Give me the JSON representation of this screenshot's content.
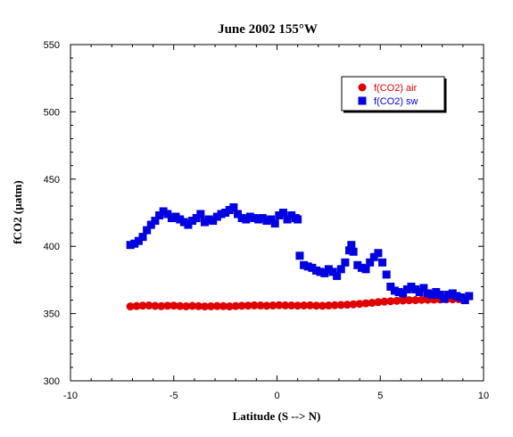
{
  "chart_data": {
    "type": "scatter",
    "title": "June 2002 155°W",
    "xlabel": "Latitude (S --> N)",
    "ylabel": "fCO2 (µatm)",
    "xlim": [
      -10,
      10
    ],
    "ylim": [
      300,
      550
    ],
    "xticks": [
      -10,
      -5,
      0,
      5,
      10
    ],
    "yticks": [
      300,
      350,
      400,
      450,
      500,
      550
    ],
    "xtick_labels": [
      "-10",
      "-5",
      "0",
      "5",
      "10"
    ],
    "ytick_labels": [
      "300",
      "350",
      "400",
      "450",
      "500",
      "550"
    ],
    "grid": false,
    "legend_position": "top-right",
    "series": [
      {
        "name": "f(CO2) air",
        "marker": "circle",
        "color": "#e00000",
        "x": [
          -7.1,
          -6.8,
          -6.5,
          -6.2,
          -5.9,
          -5.6,
          -5.3,
          -5.0,
          -4.7,
          -4.4,
          -4.1,
          -3.8,
          -3.5,
          -3.2,
          -2.9,
          -2.6,
          -2.3,
          -2.0,
          -1.7,
          -1.4,
          -1.1,
          -0.8,
          -0.5,
          -0.2,
          0.1,
          0.4,
          0.7,
          1.0,
          1.3,
          1.6,
          1.9,
          2.2,
          2.5,
          2.8,
          3.1,
          3.4,
          3.7,
          4.0,
          4.3,
          4.6,
          4.9,
          5.2,
          5.5,
          5.8,
          6.1,
          6.4,
          6.7,
          7.0,
          7.3,
          7.6,
          7.9,
          8.2,
          8.5,
          8.8,
          9.1
        ],
        "y": [
          355.3,
          355.6,
          355.9,
          356.0,
          355.7,
          355.5,
          355.8,
          355.9,
          355.6,
          355.4,
          355.7,
          355.5,
          355.3,
          355.4,
          355.6,
          355.5,
          355.3,
          355.6,
          355.8,
          355.9,
          356.1,
          356.0,
          355.8,
          356.0,
          356.2,
          356.1,
          356.0,
          355.9,
          356.0,
          356.1,
          355.9,
          355.8,
          356.0,
          356.2,
          356.4,
          356.6,
          356.9,
          357.2,
          357.6,
          358.0,
          358.5,
          358.9,
          359.2,
          359.5,
          359.7,
          359.9,
          360.0,
          360.2,
          360.3,
          360.4,
          360.5,
          360.6,
          360.6,
          360.7,
          360.8
        ]
      },
      {
        "name": "f(CO2) sw",
        "marker": "square",
        "color": "#0000e0",
        "x": [
          -7.1,
          -6.9,
          -6.7,
          -6.5,
          -6.3,
          -6.1,
          -5.9,
          -5.7,
          -5.5,
          -5.3,
          -5.1,
          -4.9,
          -4.7,
          -4.5,
          -4.3,
          -4.1,
          -3.9,
          -3.7,
          -3.5,
          -3.3,
          -3.1,
          -2.9,
          -2.7,
          -2.5,
          -2.3,
          -2.1,
          -1.9,
          -1.7,
          -1.5,
          -1.3,
          -1.1,
          -0.9,
          -0.7,
          -0.5,
          -0.3,
          -0.1,
          0.1,
          0.3,
          0.5,
          0.7,
          0.9,
          1.0,
          1.1,
          1.3,
          1.5,
          1.7,
          1.9,
          2.1,
          2.3,
          2.5,
          2.7,
          2.9,
          3.1,
          3.3,
          3.5,
          3.6,
          3.7,
          3.9,
          4.1,
          4.3,
          4.5,
          4.7,
          4.9,
          5.1,
          5.3,
          5.5,
          5.7,
          5.9,
          6.1,
          6.3,
          6.5,
          6.7,
          6.9,
          7.1,
          7.3,
          7.5,
          7.7,
          7.9,
          8.1,
          8.3,
          8.5,
          8.7,
          8.9,
          9.1,
          9.3
        ],
        "y": [
          401,
          402,
          404,
          407,
          412,
          416,
          419,
          423,
          426,
          424,
          421,
          422,
          420,
          418,
          416,
          419,
          421,
          424,
          418,
          420,
          419,
          422,
          424,
          425,
          427,
          429,
          424,
          421,
          420,
          422,
          421,
          420,
          421,
          419,
          420,
          417,
          423,
          425,
          420,
          423,
          421,
          420,
          393,
          386,
          385,
          384,
          382,
          381,
          380,
          383,
          381,
          378,
          383,
          388,
          397,
          401,
          396,
          386,
          384,
          383,
          388,
          392,
          395,
          388,
          379,
          370,
          367,
          366,
          365,
          368,
          370,
          368,
          366,
          369,
          365,
          364,
          366,
          364,
          361,
          364,
          365,
          363,
          362,
          360,
          363
        ]
      }
    ]
  }
}
